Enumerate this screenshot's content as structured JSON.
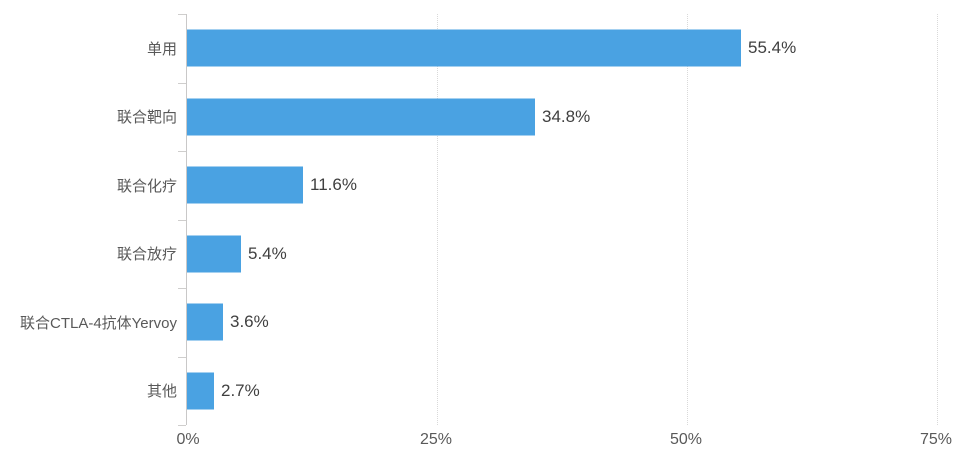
{
  "chart_data": {
    "type": "bar",
    "orientation": "horizontal",
    "title": "",
    "xlabel": "",
    "ylabel": "",
    "categories": [
      "单用",
      "联合靶向",
      "联合化疗",
      "联合放疗",
      "联合CTLA-4抗体Yervoy",
      "其他"
    ],
    "values": [
      55.4,
      34.8,
      11.6,
      5.4,
      3.6,
      2.7
    ],
    "value_labels": [
      "55.4%",
      "34.8%",
      "11.6%",
      "5.4%",
      "3.6%",
      "2.7%"
    ],
    "x_ticks": [
      {
        "label": "0%",
        "value": 0
      },
      {
        "label": "25%",
        "value": 25
      },
      {
        "label": "50%",
        "value": 50
      },
      {
        "label": "75%",
        "value": 75
      }
    ],
    "xlim": [
      0,
      76.2
    ],
    "grid": "vertical-dotted",
    "legend": "none",
    "colors": {
      "bar": "#4aa2e2",
      "axis_line": "#c9c8c8",
      "gridline": "#d9d9d9",
      "category_text": "#595959",
      "tick_text": "#595959",
      "value_text": "#3f3f3f",
      "background": "#ffffff"
    }
  }
}
